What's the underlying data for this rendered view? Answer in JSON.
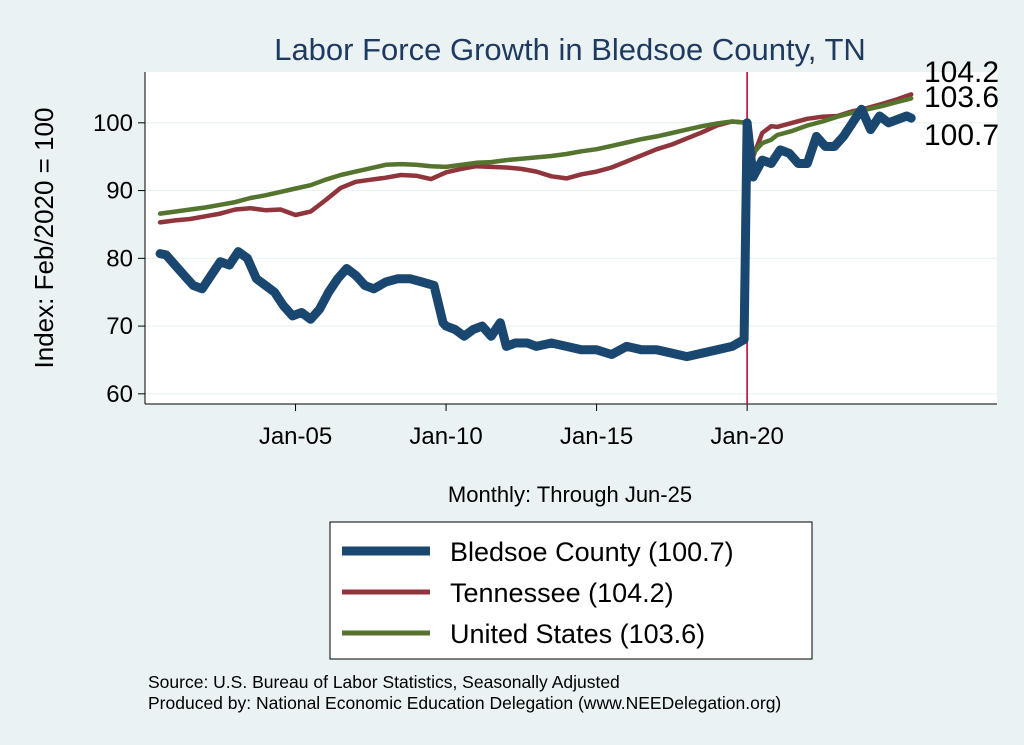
{
  "chart_data": {
    "type": "line",
    "title": "Labor Force Growth in Bledsoe  County, TN",
    "xlabel": "Monthly: Through Jun-25",
    "ylabel": "Index: Feb/2020 = 100",
    "ylim": [
      58.5,
      107.5
    ],
    "yticks": [
      60,
      70,
      80,
      90,
      100
    ],
    "xlim": [
      2000.0,
      2028.3
    ],
    "xticks": [
      {
        "x": 2005,
        "label": "Jan-05"
      },
      {
        "x": 2010,
        "label": "Jan-10"
      },
      {
        "x": 2015,
        "label": "Jan-15"
      },
      {
        "x": 2020,
        "label": "Jan-20"
      }
    ],
    "reference_line_x": 2020.0,
    "series": [
      {
        "name": "Bledsoe  County",
        "legend_label": "Bledsoe  County (100.7)",
        "end_label": "100.7",
        "color": "#1a476f",
        "x": [
          2000.5,
          2000.7,
          2001.0,
          2001.3,
          2001.6,
          2001.9,
          2002.2,
          2002.5,
          2002.8,
          2003.1,
          2003.4,
          2003.7,
          2004.0,
          2004.3,
          2004.6,
          2004.9,
          2005.2,
          2005.5,
          2005.8,
          2006.1,
          2006.4,
          2006.7,
          2007.0,
          2007.3,
          2007.6,
          2008.0,
          2008.4,
          2008.8,
          2009.2,
          2009.6,
          2009.9,
          2010.0,
          2010.3,
          2010.6,
          2010.9,
          2011.2,
          2011.5,
          2011.8,
          2012.0,
          2012.3,
          2012.7,
          2013.0,
          2013.5,
          2014.0,
          2014.5,
          2015.0,
          2015.5,
          2016.0,
          2016.5,
          2017.0,
          2017.5,
          2018.0,
          2018.5,
          2019.0,
          2019.5,
          2019.9,
          2020.0,
          2020.2,
          2020.5,
          2020.8,
          2021.1,
          2021.4,
          2021.7,
          2022.0,
          2022.3,
          2022.6,
          2022.9,
          2023.2,
          2023.5,
          2023.8,
          2024.1,
          2024.4,
          2024.7,
          2025.0,
          2025.3,
          2025.45
        ],
        "values": [
          80.7,
          80.5,
          79.0,
          77.5,
          76.0,
          75.5,
          77.5,
          79.5,
          79.0,
          81.0,
          80.0,
          77.0,
          76.0,
          75.0,
          73.0,
          71.5,
          72.0,
          71.0,
          72.5,
          75.0,
          77.0,
          78.5,
          77.5,
          76.0,
          75.5,
          76.5,
          77.0,
          77.0,
          76.5,
          76.0,
          70.5,
          70.0,
          69.5,
          68.5,
          69.5,
          70.0,
          68.5,
          70.5,
          67.0,
          67.5,
          67.5,
          67.0,
          67.5,
          67.0,
          66.5,
          66.5,
          65.8,
          67.0,
          66.5,
          66.5,
          66.0,
          65.5,
          66.0,
          66.5,
          67.0,
          68.0,
          100.0,
          92.0,
          94.5,
          94.0,
          96.0,
          95.5,
          94.0,
          94.0,
          98.0,
          96.5,
          96.5,
          98.0,
          100.0,
          102.0,
          99.0,
          101.0,
          100.0,
          100.5,
          101.0,
          100.7
        ]
      },
      {
        "name": "Tennessee",
        "legend_label": "Tennessee (104.2)",
        "end_label": "104.2",
        "color": "#90353b",
        "x": [
          2000.5,
          2001.0,
          2001.5,
          2002.0,
          2002.5,
          2003.0,
          2003.5,
          2004.0,
          2004.5,
          2005.0,
          2005.5,
          2006.0,
          2006.5,
          2007.0,
          2007.5,
          2008.0,
          2008.5,
          2009.0,
          2009.5,
          2010.0,
          2010.5,
          2011.0,
          2011.5,
          2012.0,
          2012.5,
          2013.0,
          2013.5,
          2014.0,
          2014.5,
          2015.0,
          2015.5,
          2016.0,
          2016.5,
          2017.0,
          2017.5,
          2018.0,
          2018.5,
          2019.0,
          2019.5,
          2020.0,
          2020.2,
          2020.5,
          2020.8,
          2021.0,
          2021.5,
          2022.0,
          2022.5,
          2023.0,
          2023.5,
          2024.0,
          2024.5,
          2025.0,
          2025.45
        ],
        "values": [
          85.3,
          85.6,
          85.8,
          86.2,
          86.6,
          87.2,
          87.4,
          87.1,
          87.2,
          86.4,
          86.9,
          88.6,
          90.4,
          91.3,
          91.6,
          91.9,
          92.3,
          92.2,
          91.7,
          92.7,
          93.2,
          93.6,
          93.5,
          93.4,
          93.2,
          92.8,
          92.1,
          91.8,
          92.4,
          92.8,
          93.4,
          94.3,
          95.2,
          96.1,
          96.8,
          97.7,
          98.6,
          99.6,
          100.2,
          100.0,
          95.0,
          98.5,
          99.5,
          99.4,
          100.0,
          100.6,
          100.9,
          101.0,
          101.7,
          102.2,
          102.8,
          103.5,
          104.2
        ]
      },
      {
        "name": "United States",
        "legend_label": "United States (103.6)",
        "end_label": "103.6",
        "color": "#55752f",
        "x": [
          2000.5,
          2001.0,
          2001.5,
          2002.0,
          2002.5,
          2003.0,
          2003.5,
          2004.0,
          2004.5,
          2005.0,
          2005.5,
          2006.0,
          2006.5,
          2007.0,
          2007.5,
          2008.0,
          2008.5,
          2009.0,
          2009.5,
          2010.0,
          2010.5,
          2011.0,
          2011.5,
          2012.0,
          2012.5,
          2013.0,
          2013.5,
          2014.0,
          2014.5,
          2015.0,
          2015.5,
          2016.0,
          2016.5,
          2017.0,
          2017.5,
          2018.0,
          2018.5,
          2019.0,
          2019.5,
          2020.0,
          2020.2,
          2020.5,
          2020.8,
          2021.0,
          2021.5,
          2022.0,
          2022.5,
          2023.0,
          2023.5,
          2024.0,
          2024.5,
          2025.0,
          2025.45
        ],
        "values": [
          86.6,
          86.9,
          87.2,
          87.5,
          87.9,
          88.3,
          88.9,
          89.3,
          89.8,
          90.3,
          90.8,
          91.6,
          92.3,
          92.8,
          93.3,
          93.8,
          93.9,
          93.8,
          93.6,
          93.5,
          93.8,
          94.1,
          94.2,
          94.5,
          94.7,
          94.9,
          95.1,
          95.4,
          95.8,
          96.1,
          96.6,
          97.1,
          97.6,
          98.0,
          98.5,
          99.0,
          99.5,
          99.9,
          100.2,
          100.0,
          95.5,
          97.0,
          97.5,
          98.2,
          98.8,
          99.6,
          100.2,
          100.9,
          101.5,
          102.0,
          102.5,
          103.1,
          103.6
        ]
      }
    ]
  },
  "source": "Source: U.S. Bureau of Labor Statistics, Seasonally Adjusted",
  "produced_by": "Produced by: National Economic Education Delegation (www.NEEDelegation.org)"
}
